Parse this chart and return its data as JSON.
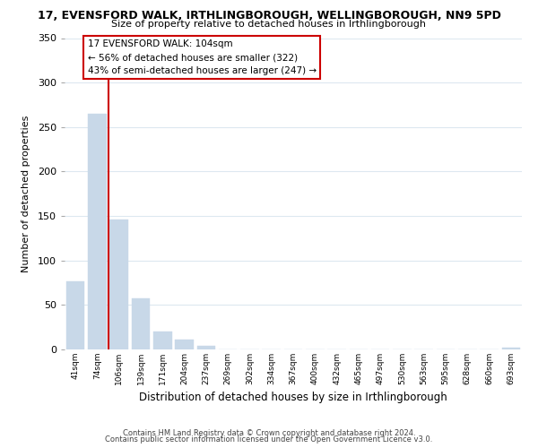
{
  "title": "17, EVENSFORD WALK, IRTHLINGBOROUGH, WELLINGBOROUGH, NN9 5PD",
  "subtitle": "Size of property relative to detached houses in Irthlingborough",
  "xlabel": "Distribution of detached houses by size in Irthlingborough",
  "ylabel": "Number of detached properties",
  "bar_labels": [
    "41sqm",
    "74sqm",
    "106sqm",
    "139sqm",
    "171sqm",
    "204sqm",
    "237sqm",
    "269sqm",
    "302sqm",
    "334sqm",
    "367sqm",
    "400sqm",
    "432sqm",
    "465sqm",
    "497sqm",
    "530sqm",
    "563sqm",
    "595sqm",
    "628sqm",
    "660sqm",
    "693sqm"
  ],
  "bar_values": [
    77,
    265,
    146,
    57,
    20,
    11,
    4,
    0,
    0,
    0,
    0,
    0,
    0,
    0,
    0,
    0,
    0,
    0,
    0,
    0,
    2
  ],
  "bar_color": "#c8d8e8",
  "highlight_bar_index": 2,
  "highlight_color": "#cc0000",
  "ylim": [
    0,
    350
  ],
  "yticks": [
    0,
    50,
    100,
    150,
    200,
    250,
    300,
    350
  ],
  "annotation_title": "17 EVENSFORD WALK: 104sqm",
  "annotation_line1": "← 56% of detached houses are smaller (322)",
  "annotation_line2": "43% of semi-detached houses are larger (247) →",
  "annotation_box_color": "#ffffff",
  "annotation_box_edge": "#cc0000",
  "footer_line1": "Contains HM Land Registry data © Crown copyright and database right 2024.",
  "footer_line2": "Contains public sector information licensed under the Open Government Licence v3.0.",
  "background_color": "#ffffff",
  "grid_color": "#dde8f0"
}
